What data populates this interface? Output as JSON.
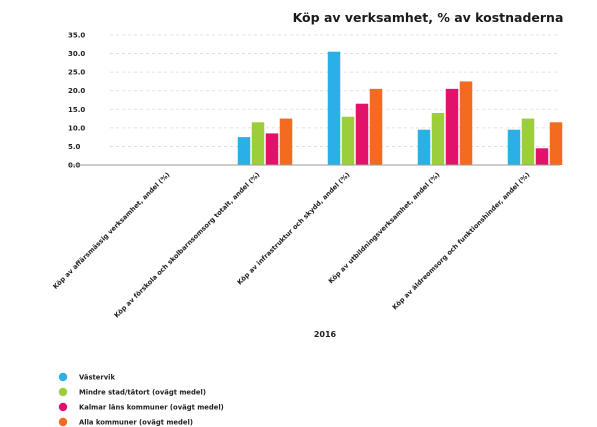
{
  "chart_data": {
    "type": "bar",
    "title": "Köp av verksamhet, % av kostnaderna",
    "xlabel": "2016",
    "ylabel": "",
    "ylim": [
      0,
      35
    ],
    "yticks": [
      "0.0",
      "5.0",
      "10.0",
      "15.0",
      "20.0",
      "25.0",
      "30.0",
      "35.0"
    ],
    "grid": true,
    "legend_position": "bottom-left",
    "categories": [
      "Köp av affärsmässig verksamhet, andel (%)",
      "Köp av förskola och skolbarnsomsorg totalt, andel (%)",
      "Köp av infrastruktur och skydd, andel (%)",
      "Köp av utbildningsverksamhet, andel (%)",
      "Köp av äldreomsorg och funktionshinder, andel (%)"
    ],
    "series": [
      {
        "name": "Västervik",
        "color": "#2ab0e4",
        "values": [
          0.0,
          7.5,
          30.5,
          9.5,
          9.5
        ]
      },
      {
        "name": "Mindre stad/tätort (ovägt medel)",
        "color": "#9ccd3a",
        "values": [
          0.0,
          11.5,
          13.0,
          14.0,
          12.5
        ]
      },
      {
        "name": "Kalmar läns kommuner (ovägt medel)",
        "color": "#e2126a",
        "values": [
          0.0,
          8.5,
          16.5,
          20.5,
          4.5
        ]
      },
      {
        "name": "Alla kommuner (ovägt medel)",
        "color": "#f26b21",
        "values": [
          0.0,
          12.5,
          20.5,
          22.5,
          11.5
        ]
      }
    ]
  }
}
